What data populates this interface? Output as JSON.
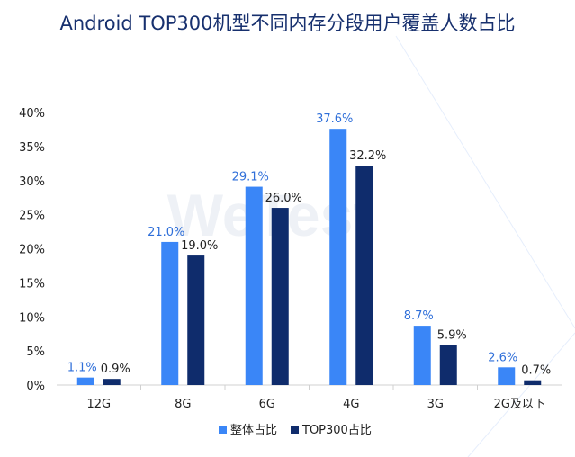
{
  "chart_data": {
    "type": "bar",
    "title": "Android TOP300机型不同内存分段用户覆盖人数占比",
    "watermark": "WeTest",
    "categories": [
      "12G",
      "8G",
      "6G",
      "4G",
      "3G",
      "2G及以下"
    ],
    "series": [
      {
        "name": "整体占比",
        "values": [
          1.1,
          21.0,
          29.1,
          37.6,
          8.7,
          2.6
        ],
        "labels": [
          "1.1%",
          "21.0%",
          "29.1%",
          "37.6%",
          "8.7%",
          "2.6%"
        ],
        "color": "#3a86f7"
      },
      {
        "name": "TOP300占比",
        "values": [
          0.9,
          19.0,
          26.0,
          32.2,
          5.9,
          0.7
        ],
        "labels": [
          "0.9%",
          "19.0%",
          "26.0%",
          "32.2%",
          "5.9%",
          "0.7%"
        ],
        "color": "#0f2c6c"
      }
    ],
    "ylim": [
      0,
      40
    ],
    "yticks": [
      "0%",
      "5%",
      "10%",
      "15%",
      "20%",
      "25%",
      "30%",
      "35%",
      "40%"
    ],
    "grid": false,
    "legend_position": "bottom-center",
    "data_label_colors": [
      "#2f6fd9",
      "#222222"
    ]
  }
}
